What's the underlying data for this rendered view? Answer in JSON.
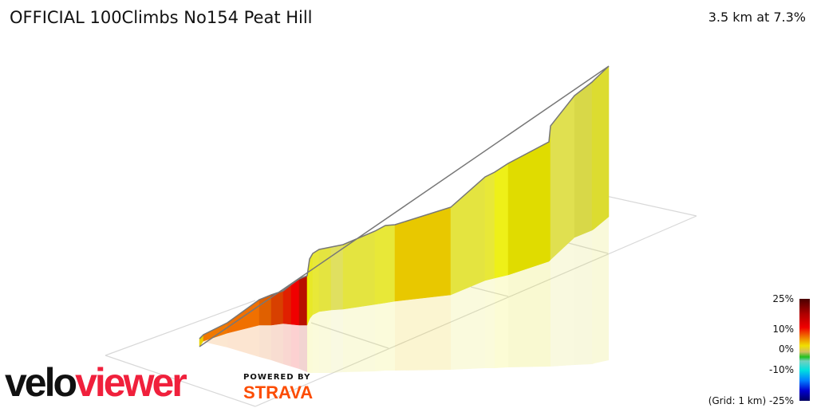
{
  "header": {
    "title": "OFFICIAL 100Climbs No154 Peat Hill",
    "summary": "3.5 km at 7.3%"
  },
  "legend": {
    "labels": [
      "25%",
      "10%",
      "0%",
      "-10%",
      "(Grid: 1 km) -25%"
    ]
  },
  "branding": {
    "logo_part1": "velo",
    "logo_part2": "viewer",
    "powered_by": "POWERED BY",
    "strava": "STRAVA"
  },
  "colors": {
    "logo_red": "#f0203c",
    "strava_orange": "#fc4c02",
    "profile_outline": "#777777"
  }
}
